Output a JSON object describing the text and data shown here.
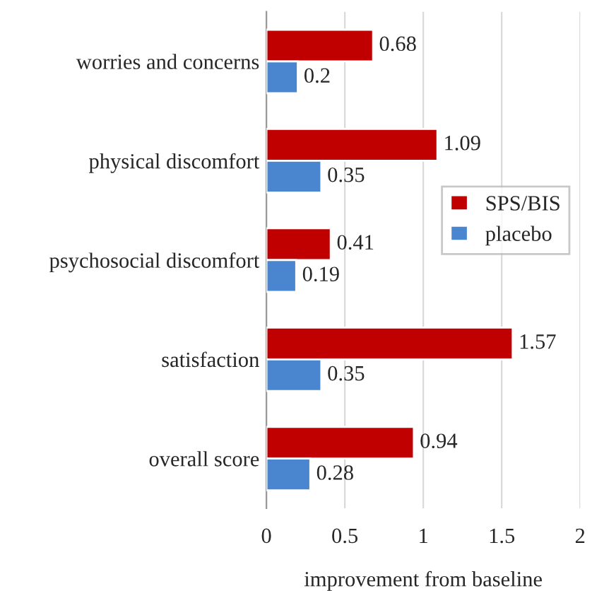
{
  "chart_data": {
    "type": "bar",
    "orientation": "horizontal",
    "xlabel": "improvement from baseline",
    "categories": [
      "worries and concerns",
      "physical discomfort",
      "psychosocial discomfort",
      "satisfaction",
      "overall score"
    ],
    "series": [
      {
        "name": "SPS/BIS",
        "color": "#c00000",
        "values": [
          0.68,
          1.09,
          0.41,
          1.57,
          0.94
        ]
      },
      {
        "name": "placebo",
        "color": "#4a86d0",
        "values": [
          0.2,
          0.35,
          0.19,
          0.35,
          0.28
        ]
      }
    ],
    "xlim": [
      0,
      2
    ],
    "xticks": [
      0,
      0.5,
      1,
      1.5,
      2
    ],
    "grid": "x",
    "legend": "right",
    "data_labels": true
  }
}
